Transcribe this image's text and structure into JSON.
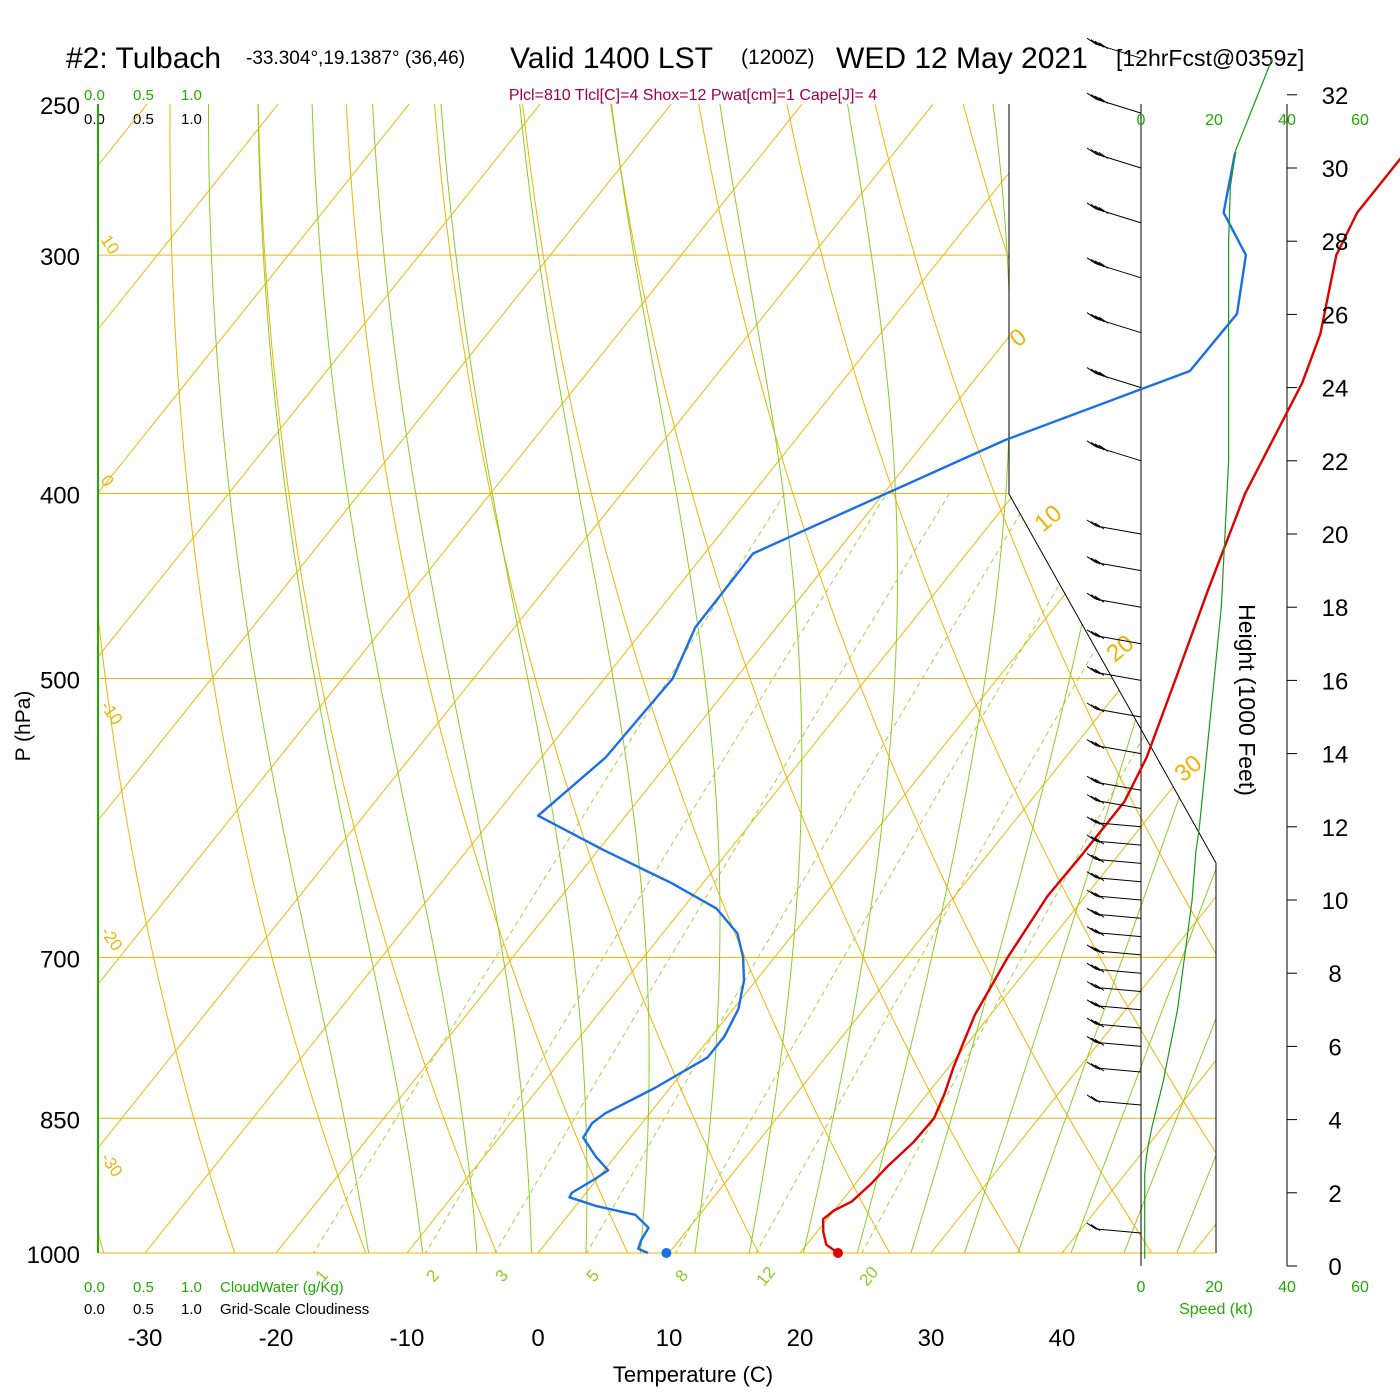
{
  "header": {
    "station": "#2: Tulbach",
    "coords": "-33.304°,19.1387° (36,46)",
    "valid": "Valid 1400 LST",
    "zulu": "(1200Z)",
    "date": "WED 12 May 2021",
    "forecast": "[12hrFcst@0359z]",
    "indices": "Plcl=810 Tlcl[C]=4 Shox=12 Pwat[cm]=1 Cape[J]= 4"
  },
  "labels": {
    "cloud_water": "CloudWater (g/Kg)",
    "cloudiness": "Grid-Scale Cloudiness",
    "speed": "Speed (kt)"
  },
  "colors": {
    "isotherm": "#f0b400",
    "moist_adiabat": "#8ccc28",
    "mixing_ratio": "#a8d040",
    "temperature": "#e00000",
    "dewpoint": "#1a6fe8",
    "wind_speed": "#1a9a1a",
    "indices_text": "#a0004a",
    "green_text": "#22aa00"
  },
  "chart_data": {
    "type": "skew-t",
    "xlabel": "Temperature (C)",
    "ylabel": "P (hPa)",
    "ylabel_right": "Height (1000 Feet)",
    "x_ticks": [
      -30,
      -20,
      -10,
      0,
      10,
      20,
      30,
      40
    ],
    "x_tick_labels": [
      "-30",
      "-20",
      "-10",
      "0",
      "10",
      "20",
      "30",
      "40"
    ],
    "p_ticks": [
      250,
      300,
      400,
      500,
      700,
      850,
      1000
    ],
    "p_tick_labels": [
      "250",
      "300",
      "400",
      "500",
      "700",
      "850",
      "1000"
    ],
    "height_ticks": [
      0,
      2,
      4,
      6,
      8,
      10,
      12,
      14,
      16,
      18,
      20,
      22,
      24,
      26,
      28,
      30,
      32
    ],
    "height_tick_labels": [
      "0",
      "2",
      "4",
      "6",
      "8",
      "10",
      "12",
      "14",
      "16",
      "18",
      "20",
      "22",
      "24",
      "26",
      "28",
      "30",
      "32"
    ],
    "cloud_ticks": [
      "0.0",
      "0.5",
      "1.0"
    ],
    "speed_ticks": [
      0,
      20,
      40,
      60
    ],
    "speed_tick_labels": [
      "0",
      "20",
      "40",
      "60"
    ],
    "isotherm_labels": [
      "10",
      "0",
      "-10",
      "-20",
      "-30",
      "0",
      "10",
      "20",
      "30"
    ],
    "mixing_ratio_labels": [
      "1",
      "2",
      "3",
      "5",
      "8",
      "12",
      "20"
    ],
    "temperature": [
      {
        "p": 1000,
        "t": 22.9
      },
      {
        "p": 990,
        "t": 21.5
      },
      {
        "p": 975,
        "t": 20.5
      },
      {
        "p": 960,
        "t": 19.7
      },
      {
        "p": 950,
        "t": 20.0
      },
      {
        "p": 940,
        "t": 20.8
      },
      {
        "p": 920,
        "t": 21.2
      },
      {
        "p": 900,
        "t": 21.4
      },
      {
        "p": 875,
        "t": 21.9
      },
      {
        "p": 850,
        "t": 22.0
      },
      {
        "p": 825,
        "t": 21.3
      },
      {
        "p": 800,
        "t": 20.4
      },
      {
        "p": 775,
        "t": 19.6
      },
      {
        "p": 750,
        "t": 18.8
      },
      {
        "p": 700,
        "t": 17.8
      },
      {
        "p": 650,
        "t": 17.1
      },
      {
        "p": 620,
        "t": 17.2
      },
      {
        "p": 580,
        "t": 17.2
      },
      {
        "p": 550,
        "t": 16.2
      },
      {
        "p": 500,
        "t": 13.6
      },
      {
        "p": 450,
        "t": 10.7
      },
      {
        "p": 400,
        "t": 7.6
      },
      {
        "p": 350,
        "t": 5.2
      },
      {
        "p": 330,
        "t": 3.6
      },
      {
        "p": 300,
        "t": 0.0
      },
      {
        "p": 285,
        "t": -1.0
      },
      {
        "p": 265,
        "t": -1.0
      }
    ],
    "dewpoint": [
      {
        "p": 1000,
        "t": 8.4
      },
      {
        "p": 995,
        "t": 7.4
      },
      {
        "p": 985,
        "t": 7.1
      },
      {
        "p": 970,
        "t": 6.9
      },
      {
        "p": 955,
        "t": 5.1
      },
      {
        "p": 945,
        "t": 1.6
      },
      {
        "p": 935,
        "t": -1.0
      },
      {
        "p": 930,
        "t": -1.1
      },
      {
        "p": 915,
        "t": -0.2
      },
      {
        "p": 905,
        "t": 0.3
      },
      {
        "p": 890,
        "t": -1.5
      },
      {
        "p": 870,
        "t": -3.6
      },
      {
        "p": 855,
        "t": -3.8
      },
      {
        "p": 845,
        "t": -3.4
      },
      {
        "p": 820,
        "t": -1.2
      },
      {
        "p": 790,
        "t": 1.0
      },
      {
        "p": 770,
        "t": 1.0
      },
      {
        "p": 745,
        "t": 0.4
      },
      {
        "p": 720,
        "t": -0.9
      },
      {
        "p": 700,
        "t": -2.4
      },
      {
        "p": 680,
        "t": -4.3
      },
      {
        "p": 660,
        "t": -7.4
      },
      {
        "p": 640,
        "t": -12.4
      },
      {
        "p": 615,
        "t": -19.6
      },
      {
        "p": 590,
        "t": -26.7
      },
      {
        "p": 550,
        "t": -25.1
      },
      {
        "p": 500,
        "t": -24.8
      },
      {
        "p": 470,
        "t": -26.2
      },
      {
        "p": 430,
        "t": -26.3
      },
      {
        "p": 375,
        "t": -14.0
      },
      {
        "p": 345,
        "t": -4.1
      },
      {
        "p": 322,
        "t": -4.0
      },
      {
        "p": 300,
        "t": -6.9
      },
      {
        "p": 285,
        "t": -11.2
      },
      {
        "p": 265,
        "t": -14.0
      }
    ],
    "surface_temperature": {
      "p": 1000,
      "t": 22.9
    },
    "surface_dewpoint": {
      "p": 1000,
      "t": 9.8
    },
    "wind_speed_profile": [
      {
        "h": 0.2,
        "s": 1
      },
      {
        "h": 1.0,
        "s": 1
      },
      {
        "h": 2.5,
        "s": 1
      },
      {
        "h": 3.0,
        "s": 1.5
      },
      {
        "h": 3.3,
        "s": 2
      },
      {
        "h": 3.8,
        "s": 3
      },
      {
        "h": 4.2,
        "s": 4
      },
      {
        "h": 5.0,
        "s": 6
      },
      {
        "h": 6.0,
        "s": 8
      },
      {
        "h": 7.0,
        "s": 10
      },
      {
        "h": 8.5,
        "s": 12
      },
      {
        "h": 10.0,
        "s": 14
      },
      {
        "h": 11.3,
        "s": 15
      },
      {
        "h": 12.0,
        "s": 16
      },
      {
        "h": 14.0,
        "s": 18
      },
      {
        "h": 16.0,
        "s": 20
      },
      {
        "h": 18.0,
        "s": 22
      },
      {
        "h": 20.0,
        "s": 23
      },
      {
        "h": 22.0,
        "s": 24
      },
      {
        "h": 24.0,
        "s": 24
      },
      {
        "h": 26.0,
        "s": 24
      },
      {
        "h": 28.0,
        "s": 24
      },
      {
        "h": 29.5,
        "s": 24.5
      },
      {
        "h": 30.5,
        "s": 26
      },
      {
        "h": 31.5,
        "s": 30
      },
      {
        "h": 32.5,
        "s": 34
      },
      {
        "h": 33.0,
        "s": 36
      }
    ],
    "wind_barbs_height_kft": [
      0.9,
      4.4,
      5.3,
      6.0,
      6.5,
      7.0,
      7.5,
      8.0,
      8.5,
      9.0,
      9.5,
      10.0,
      10.5,
      11.0,
      11.5,
      12.0,
      12.5,
      13.0,
      14.0,
      15.0,
      16.0,
      17.0,
      18.0,
      19.0,
      20.0,
      22.0,
      24.0,
      25.5,
      27.0,
      28.5,
      30.0,
      31.5,
      33.0
    ]
  }
}
